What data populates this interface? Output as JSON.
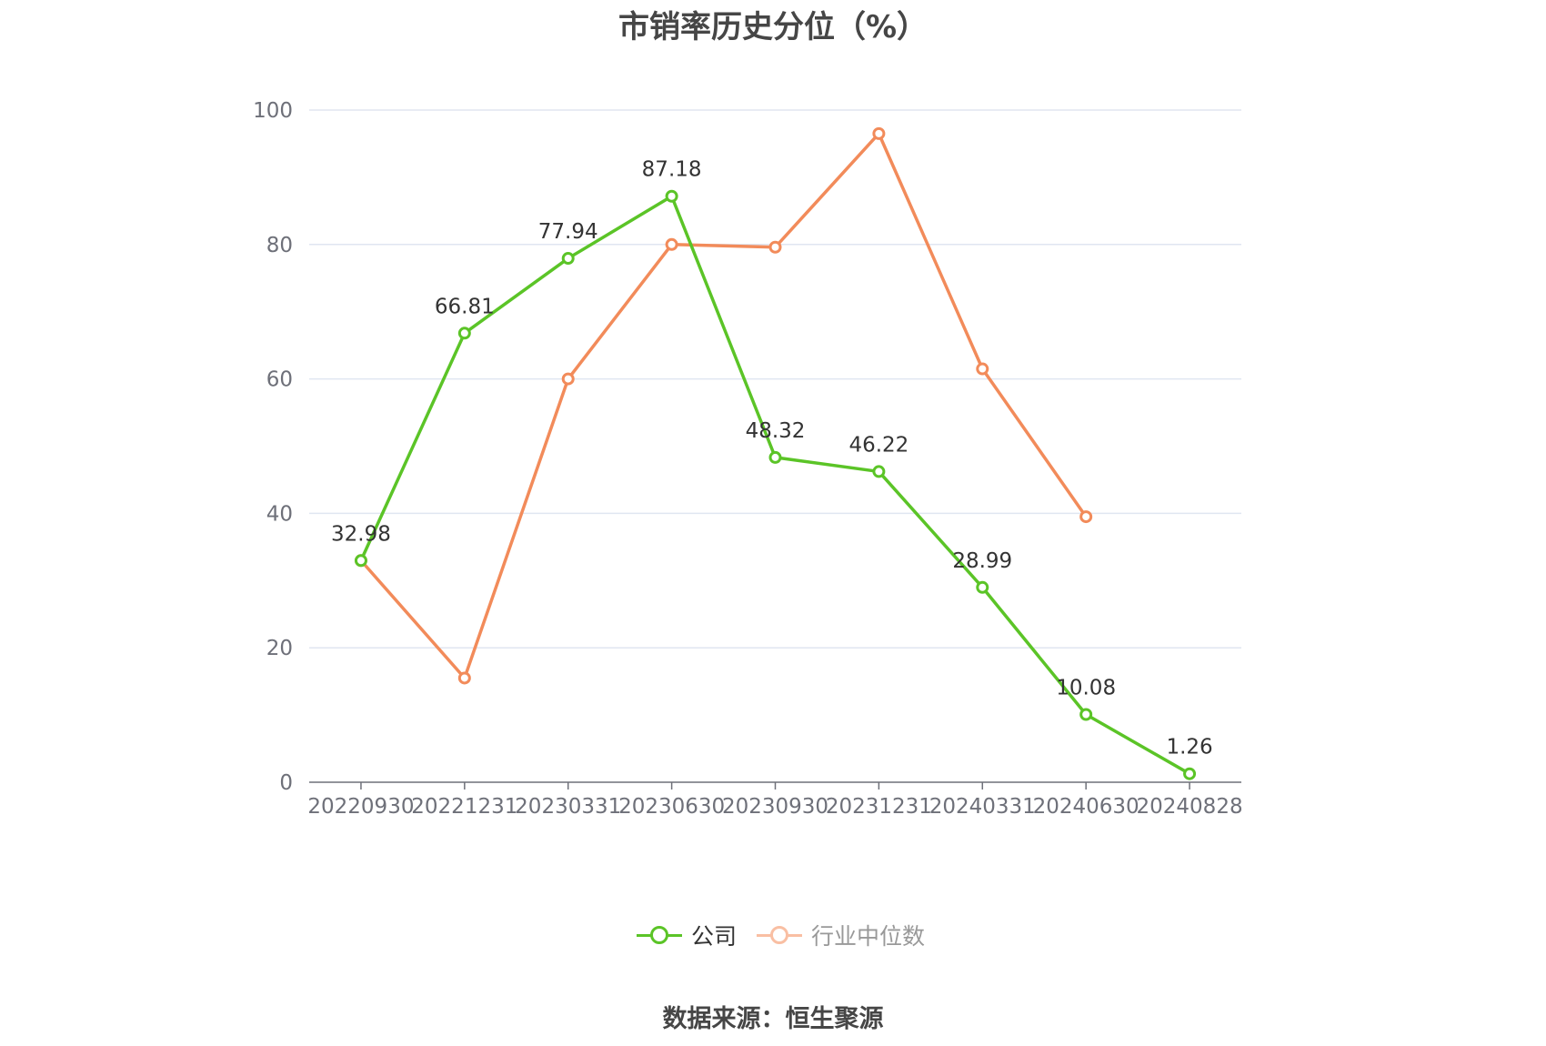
{
  "chart_data": {
    "type": "line",
    "title": "市销率历史分位（%）",
    "categories": [
      "20220930",
      "20221231",
      "20230331",
      "20230630",
      "20230930",
      "20231231",
      "20240331",
      "20240630",
      "20240828"
    ],
    "series": [
      {
        "name": "公司",
        "color": "#5bc427",
        "values": [
          32.98,
          66.81,
          77.94,
          87.18,
          48.32,
          46.22,
          28.99,
          10.08,
          1.26
        ],
        "labels": [
          "32.98",
          "66.81",
          "77.94",
          "87.18",
          "48.32",
          "46.22",
          "28.99",
          "10.08",
          "1.26"
        ]
      },
      {
        "name": "行业中位数",
        "color": "#f28b5a",
        "values": [
          32.98,
          15.5,
          60.0,
          80.0,
          79.6,
          96.5,
          61.5,
          39.5,
          null
        ]
      }
    ],
    "ylim": [
      0,
      100
    ],
    "yticks": [
      0,
      20,
      40,
      60,
      80,
      100
    ],
    "grid": true,
    "legend_position": "bottom-center"
  },
  "legend": {
    "company": "公司",
    "industry": "行业中位数"
  },
  "source": "数据来源：恒生聚源"
}
